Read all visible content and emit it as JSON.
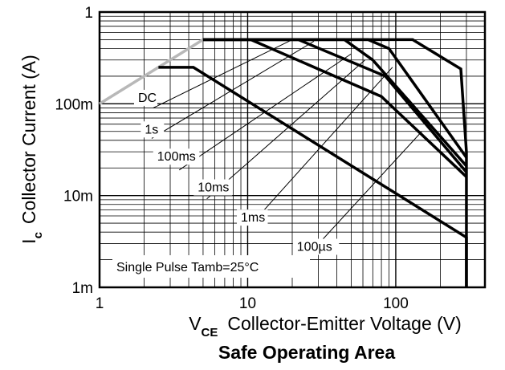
{
  "chart_data": {
    "type": "line",
    "title": "Safe Operating Area",
    "xlabel": {
      "prefix": "V",
      "sub": "CE",
      "text": "Collector-Emitter Voltage (V)"
    },
    "ylabel": {
      "prefix": "I",
      "sub": "c",
      "text": "Collector Current (A)"
    },
    "x_scale": "log",
    "y_scale": "log",
    "xlim": [
      1,
      400
    ],
    "ylim": [
      0.001,
      1
    ],
    "x_ticks": [
      {
        "v": 1,
        "label": "1"
      },
      {
        "v": 10,
        "label": "10"
      },
      {
        "v": 100,
        "label": "100"
      }
    ],
    "y_ticks": [
      {
        "v": 0.001,
        "label": "1m"
      },
      {
        "v": 0.01,
        "label": "10m"
      },
      {
        "v": 0.1,
        "label": "100m"
      },
      {
        "v": 1,
        "label": "1"
      }
    ],
    "grid": true,
    "annotation": "Single Pulse  Tamb=25°C",
    "limit_line": {
      "color": "#b8b8b8",
      "x": [
        1,
        5
      ],
      "y": [
        0.1,
        0.5
      ]
    },
    "series": [
      {
        "name": "DC",
        "x": [
          2.5,
          4.3,
          300,
          300
        ],
        "y": [
          0.25,
          0.25,
          0.0035,
          0.001
        ]
      },
      {
        "name": "1s",
        "x": [
          5,
          10.5,
          80,
          300
        ],
        "y": [
          0.5,
          0.5,
          0.12,
          0.016
        ]
      },
      {
        "name": "100ms",
        "x": [
          5,
          22,
          85,
          300
        ],
        "y": [
          0.5,
          0.5,
          0.2,
          0.018
        ]
      },
      {
        "name": "10ms",
        "x": [
          5,
          45,
          70,
          300
        ],
        "y": [
          0.5,
          0.5,
          0.3,
          0.021
        ]
      },
      {
        "name": "1ms",
        "x": [
          5,
          65,
          90,
          300
        ],
        "y": [
          0.5,
          0.5,
          0.4,
          0.026
        ]
      },
      {
        "name": "100µs",
        "x": [
          5,
          130,
          275,
          300,
          300
        ],
        "y": [
          0.5,
          0.5,
          0.24,
          0.03,
          0.001
        ]
      }
    ],
    "series_labels": [
      {
        "name": "DC",
        "text": "DC",
        "x": 1.82,
        "y": 0.105
      },
      {
        "name": "1s",
        "text": "1s",
        "x": 2.02,
        "y": 0.0475
      },
      {
        "name": "100ms",
        "text": "100ms",
        "x": 2.45,
        "y": 0.024
      },
      {
        "name": "10ms",
        "text": "10ms",
        "x": 4.6,
        "y": 0.0111
      },
      {
        "name": "1ms",
        "text": "1ms",
        "x": 9.0,
        "y": 0.0052
      },
      {
        "name": "100µs",
        "text": "100µs",
        "x": 21.5,
        "y": 0.0025
      }
    ],
    "leader_lines": [
      {
        "x": [
          2.3,
          20
        ],
        "y": [
          0.09,
          0.5
        ]
      },
      {
        "x": [
          2.25,
          28
        ],
        "y": [
          0.042,
          0.48
        ]
      },
      {
        "x": [
          3.45,
          50
        ],
        "y": [
          0.019,
          0.35
        ]
      },
      {
        "x": [
          5.3,
          62
        ],
        "y": [
          0.0092,
          0.3
        ]
      },
      {
        "x": [
          10.5,
          95
        ],
        "y": [
          0.0048,
          0.25
        ]
      },
      {
        "x": [
          26,
          150
        ],
        "y": [
          0.0023,
          0.05
        ]
      }
    ]
  }
}
